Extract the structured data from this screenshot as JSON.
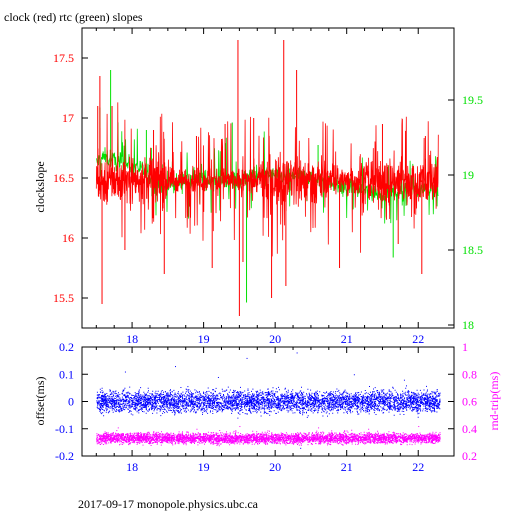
{
  "title": "clock (red) rtc (green) slopes",
  "footer": "2017-09-17  monopole.physics.ubc.ca",
  "colors": {
    "clock": "#ff0000",
    "rtc": "#00e000",
    "offset": "#0000ff",
    "rndtrip": "#ff00ff",
    "axis": "#000000"
  },
  "chart_data": [
    {
      "type": "line",
      "title": "clock (red) rtc (green) slopes",
      "xlabel": "",
      "ylabel": "clockslope",
      "xlim": [
        17.3,
        22.5
      ],
      "ylim": [
        15.25,
        17.75
      ],
      "y2lim": [
        17.98,
        19.98
      ],
      "x_ticks": [
        "18",
        "19",
        "20",
        "21",
        "22"
      ],
      "y_ticks": [
        "15.5",
        "16",
        "16.5",
        "17",
        "17.5"
      ],
      "y2_ticks": [
        "18",
        "18.5",
        "19",
        "19.5"
      ],
      "grid": false,
      "series": [
        {
          "name": "clock",
          "axis": "left",
          "baseline": 16.48,
          "x": [
            17.52,
            17.55,
            17.58,
            17.72,
            17.9,
            18.3,
            18.45,
            18.9,
            19.12,
            19.3,
            19.48,
            19.5,
            19.55,
            19.7,
            19.95,
            20.12,
            20.15,
            20.3,
            20.9,
            21.5,
            21.72,
            22.05,
            22.1
          ],
          "peaks": [
            17.1,
            17.35,
            15.45,
            17.1,
            15.9,
            16.9,
            15.7,
            16.85,
            15.75,
            16.95,
            17.65,
            15.35,
            15.8,
            17.0,
            15.5,
            17.65,
            15.6,
            17.4,
            15.75,
            16.95,
            15.95,
            15.7,
            16.85
          ]
        },
        {
          "name": "rtc",
          "axis": "right",
          "x": [
            17.5,
            17.6,
            17.85,
            18.1,
            18.45,
            18.6,
            18.85,
            19.3,
            19.6,
            19.9,
            20.2,
            20.5,
            20.7,
            21.0,
            21.5,
            21.8,
            22.0,
            22.28
          ],
          "values": [
            19.08,
            19.12,
            19.08,
            19.05,
            18.92,
            18.95,
            18.98,
            18.96,
            18.98,
            18.99,
            19.0,
            18.98,
            18.96,
            18.92,
            18.88,
            18.9,
            18.92,
            18.9
          ],
          "peaks_x": [
            17.55,
            17.7,
            18.2,
            19.4,
            19.6,
            20.6,
            21.65
          ],
          "peaks": [
            19.45,
            19.7,
            19.3,
            19.35,
            18.15,
            19.2,
            18.45
          ]
        }
      ]
    },
    {
      "type": "scatter",
      "xlabel": "",
      "ylabel": "offset(ms)",
      "y2label": "rnd-trip(ms)",
      "xlim": [
        17.3,
        22.5
      ],
      "ylim": [
        -0.2,
        0.2
      ],
      "y2lim": [
        0.2,
        1.0
      ],
      "x_ticks": [
        "18",
        "19",
        "20",
        "21",
        "22"
      ],
      "y_ticks": [
        "-0.2",
        "-0.1",
        "0",
        "0.1",
        "0.2"
      ],
      "y2_ticks": [
        "0.2",
        "0.4",
        "0.6",
        "0.8",
        "1"
      ],
      "grid": false,
      "series": [
        {
          "name": "offset",
          "axis": "left",
          "x_range": [
            17.5,
            22.3
          ],
          "center": 0.0,
          "band": 0.035,
          "outlier_x": [
            17.9,
            18.6,
            19.2,
            19.6,
            20.3,
            20.35,
            21.1,
            21.8,
            19.95
          ],
          "outlier_y": [
            0.11,
            0.13,
            0.09,
            0.16,
            0.18,
            -0.17,
            0.1,
            0.08,
            -0.15
          ]
        },
        {
          "name": "rnd-trip",
          "axis": "right",
          "x_range": [
            17.5,
            22.3
          ],
          "center": 0.33,
          "band": 0.035,
          "outlier_x": [
            17.8,
            18.9,
            19.5,
            20.6,
            21.3,
            22.0
          ],
          "outlier_y": [
            0.41,
            0.4,
            0.42,
            0.41,
            0.4,
            0.42
          ]
        }
      ]
    }
  ]
}
